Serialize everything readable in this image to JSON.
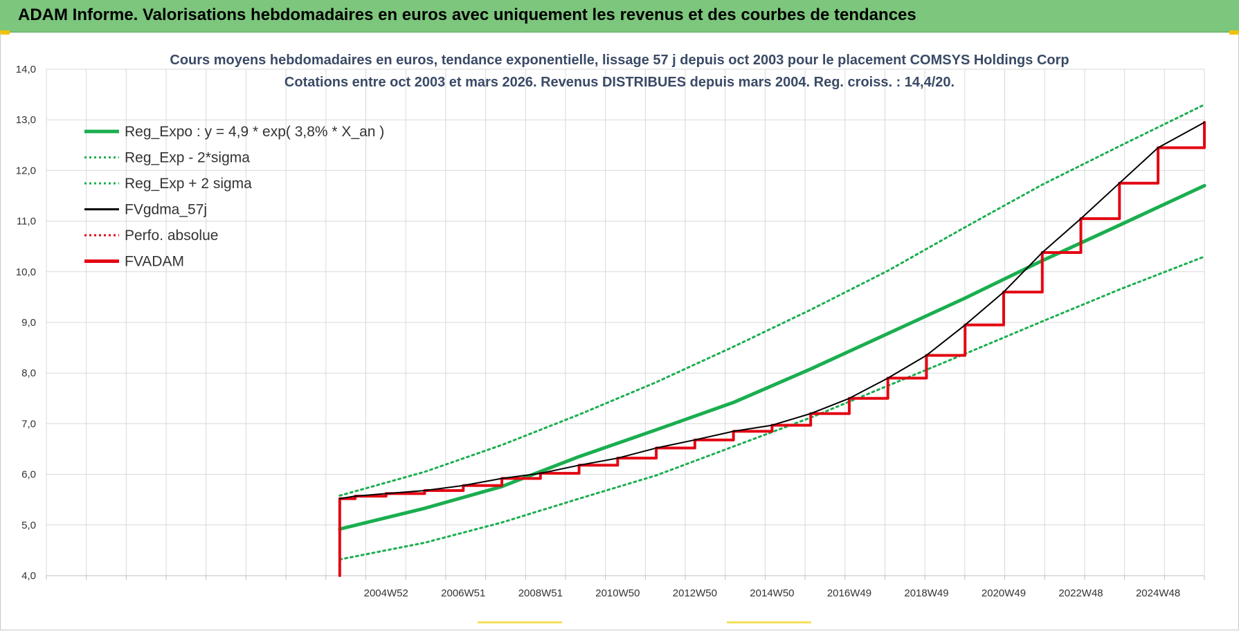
{
  "header": {
    "title": "ADAM Informe. Valorisations hebdomadaires en euros avec uniquement les revenus et des courbes de tendances"
  },
  "colors": {
    "header_bg": "#7dc67d",
    "trend_green": "#1aae4f",
    "fvadam_red": "#e30613",
    "fvgdma_black": "#000000",
    "title_text": "#3a4a66",
    "grid": "#d9d9d9"
  },
  "chart_data": {
    "type": "line",
    "title_line1": "Cours moyens hebdomadaires en euros, tendance exponentielle, lissage 57 j depuis oct 2003 pour le placement COMSYS Holdings Corp",
    "title_line2": "Cotations entre oct 2003 et mars 2026. Revenus DISTRIBUES depuis mars 2004. Reg. croiss. : 14,4/20.",
    "ylim": [
      4.0,
      14.0
    ],
    "y_ticks": [
      "4,0",
      "5,0",
      "6,0",
      "7,0",
      "8,0",
      "9,0",
      "10,0",
      "11,0",
      "12,0",
      "13,0",
      "14,0"
    ],
    "x_tick_labels": [
      "2004W52",
      "2006W51",
      "2008W51",
      "2010W50",
      "2012W50",
      "2014W50",
      "2016W49",
      "2018W49",
      "2020W49",
      "2022W48",
      "2024W48"
    ],
    "x_range_years": [
      1996.2,
      2026.2
    ],
    "data_start_year": 2003.8,
    "legend_position": "top-left",
    "legend": [
      {
        "name": "Reg_Expo : y = 4,9 * exp( 3,8% *  X_an )",
        "style": "solid-thick",
        "color": "#1aae4f"
      },
      {
        "name": "Reg_Exp - 2*sigma",
        "style": "dotted",
        "color": "#1aae4f"
      },
      {
        "name": "Reg_Exp + 2 sigma",
        "style": "dotted",
        "color": "#1aae4f"
      },
      {
        "name": "FVgdma_57j",
        "style": "solid-thin",
        "color": "#000000"
      },
      {
        "name": "Perfo. absolue",
        "style": "dotted",
        "color": "#e30613"
      },
      {
        "name": "FVADAM",
        "style": "solid-thick",
        "color": "#e30613"
      }
    ],
    "series": [
      {
        "name": "Reg_Expo : y = 4,9 * exp( 3,8% *  X_an )",
        "x": [
          2003.8,
          2006,
          2008,
          2010,
          2012,
          2014,
          2016,
          2018,
          2020,
          2022,
          2024,
          2026.2
        ],
        "values": [
          4.92,
          5.33,
          5.76,
          6.35,
          6.88,
          7.42,
          8.08,
          8.78,
          9.48,
          10.22,
          10.92,
          11.7
        ]
      },
      {
        "name": "Reg_Exp - 2*sigma",
        "x": [
          2003.8,
          2006,
          2008,
          2010,
          2012,
          2014,
          2016,
          2018,
          2020,
          2022,
          2024,
          2026.2
        ],
        "values": [
          4.32,
          4.65,
          5.05,
          5.52,
          5.98,
          6.55,
          7.12,
          7.75,
          8.38,
          9.02,
          9.65,
          10.3
        ]
      },
      {
        "name": "Reg_Exp + 2 sigma",
        "x": [
          2003.8,
          2006,
          2008,
          2010,
          2012,
          2014,
          2016,
          2018,
          2020,
          2022,
          2024,
          2026.2
        ],
        "values": [
          5.58,
          6.05,
          6.58,
          7.18,
          7.82,
          8.52,
          9.25,
          10.02,
          10.88,
          11.72,
          12.48,
          13.3
        ]
      },
      {
        "name": "FVADAM",
        "x": [
          2003.8,
          2003.8,
          2004.2,
          2005,
          2006,
          2007,
          2008,
          2009,
          2010,
          2011,
          2012,
          2013,
          2014,
          2015,
          2016,
          2017,
          2018,
          2019,
          2020,
          2021,
          2022,
          2023,
          2024,
          2025,
          2026.2
        ],
        "values": [
          4.0,
          5.52,
          5.57,
          5.62,
          5.68,
          5.78,
          5.92,
          6.02,
          6.18,
          6.32,
          6.52,
          6.68,
          6.85,
          6.97,
          7.2,
          7.5,
          7.9,
          8.35,
          8.95,
          9.6,
          10.38,
          11.05,
          11.75,
          12.45,
          12.95
        ]
      },
      {
        "name": "FVgdma_57j",
        "x": [
          2003.8,
          2004.2,
          2005,
          2006,
          2007,
          2008,
          2009,
          2010,
          2011,
          2012,
          2013,
          2014,
          2015,
          2016,
          2017,
          2018,
          2019,
          2020,
          2021,
          2022,
          2023,
          2024,
          2025,
          2026.2
        ],
        "values": [
          5.52,
          5.57,
          5.62,
          5.68,
          5.78,
          5.92,
          6.02,
          6.18,
          6.32,
          6.52,
          6.68,
          6.85,
          6.97,
          7.2,
          7.5,
          7.9,
          8.35,
          8.95,
          9.6,
          10.38,
          11.05,
          11.75,
          12.45,
          12.95
        ]
      }
    ]
  }
}
